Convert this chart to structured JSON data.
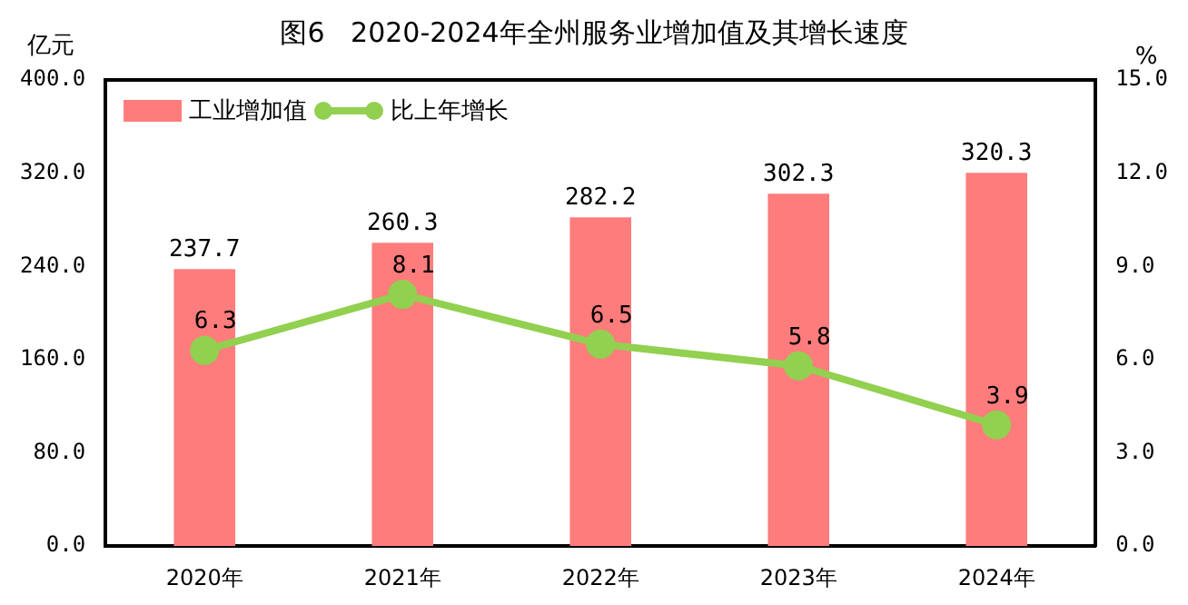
{
  "chart_data": {
    "type": "bar",
    "title": "图6   2020-2024年全州服务业增加值及其增长速度",
    "ylabel": "亿元",
    "y2label": "%",
    "categories": [
      "2020年",
      "2021年",
      "2022年",
      "2023年",
      "2024年"
    ],
    "series": [
      {
        "name": "工业增加值",
        "type": "bar",
        "color": "#ff7c7c",
        "values": [
          237.7,
          260.3,
          282.2,
          302.3,
          320.3
        ]
      },
      {
        "name": "比上年增长",
        "type": "line",
        "axis": "y2",
        "color": "#92d050",
        "values": [
          6.3,
          8.1,
          6.5,
          5.8,
          3.9
        ]
      }
    ],
    "ylim": [
      0,
      400
    ],
    "yticks": [
      {
        "value": 0,
        "label": "0.0"
      },
      {
        "value": 80,
        "label": "80.0"
      },
      {
        "value": 160,
        "label": "160.0"
      },
      {
        "value": 240,
        "label": "240.0"
      },
      {
        "value": 320,
        "label": "320.0"
      },
      {
        "value": 400,
        "label": "400.0"
      }
    ],
    "y2lim": [
      0,
      15
    ],
    "y2ticks": [
      {
        "value": 0,
        "label": "0.0"
      },
      {
        "value": 3,
        "label": "3.0"
      },
      {
        "value": 6,
        "label": "6.0"
      },
      {
        "value": 9,
        "label": "9.0"
      },
      {
        "value": 12,
        "label": "12.0"
      },
      {
        "value": 15,
        "label": "15.0"
      }
    ],
    "data_labels": true,
    "legend": "top left",
    "grid": false,
    "marker": "circle",
    "line_style": "solid"
  }
}
